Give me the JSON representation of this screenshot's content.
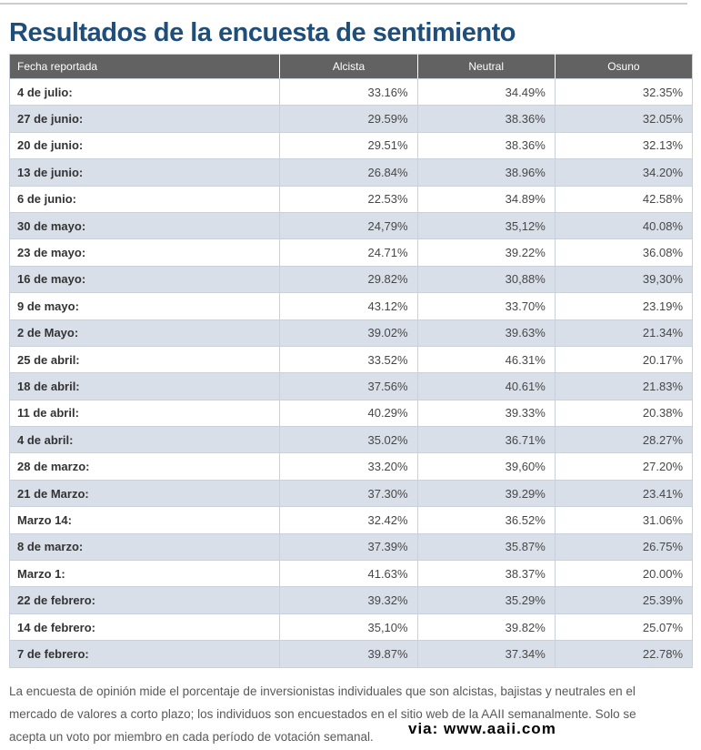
{
  "page": {
    "title": "Resultados de la encuesta de sentimiento",
    "colors": {
      "title_text": "#1F4E79",
      "header_bg": "#626262",
      "header_text": "#FFFFFF",
      "row_alt_bg": "#D9DFE9",
      "table_border": "#C9D1DD",
      "body_text": "#595959",
      "attribution_text": "#000000"
    }
  },
  "table": {
    "columns": [
      "Fecha reportada",
      "Alcista",
      "Neutral",
      "Osuno"
    ],
    "rows": [
      {
        "date": "4 de julio:",
        "alcista": "33.16%",
        "neutral": "34.49%",
        "osuno": "32.35%"
      },
      {
        "date": "27 de junio:",
        "alcista": "29.59%",
        "neutral": "38.36%",
        "osuno": "32.05%"
      },
      {
        "date": "20 de junio:",
        "alcista": "29.51%",
        "neutral": "38.36%",
        "osuno": "32.13%"
      },
      {
        "date": "13 de junio:",
        "alcista": "26.84%",
        "neutral": "38.96%",
        "osuno": "34.20%"
      },
      {
        "date": "6 de junio:",
        "alcista": "22.53%",
        "neutral": "34.89%",
        "osuno": "42.58%"
      },
      {
        "date": "30 de mayo:",
        "alcista": "24,79%",
        "neutral": "35,12%",
        "osuno": "40.08%"
      },
      {
        "date": "23 de mayo:",
        "alcista": "24.71%",
        "neutral": "39.22%",
        "osuno": "36.08%"
      },
      {
        "date": "16 de mayo:",
        "alcista": "29.82%",
        "neutral": "30,88%",
        "osuno": "39,30%"
      },
      {
        "date": "9 de mayo:",
        "alcista": "43.12%",
        "neutral": "33.70%",
        "osuno": "23.19%"
      },
      {
        "date": "2 de Mayo:",
        "alcista": "39.02%",
        "neutral": "39.63%",
        "osuno": "21.34%"
      },
      {
        "date": "25 de abril:",
        "alcista": "33.52%",
        "neutral": "46.31%",
        "osuno": "20.17%"
      },
      {
        "date": "18 de abril:",
        "alcista": "37.56%",
        "neutral": "40.61%",
        "osuno": "21.83%"
      },
      {
        "date": "11 de abril:",
        "alcista": "40.29%",
        "neutral": "39.33%",
        "osuno": "20.38%"
      },
      {
        "date": "4 de abril:",
        "alcista": "35.02%",
        "neutral": "36.71%",
        "osuno": "28.27%"
      },
      {
        "date": "28 de marzo:",
        "alcista": "33.20%",
        "neutral": "39,60%",
        "osuno": "27.20%"
      },
      {
        "date": "21 de Marzo:",
        "alcista": "37.30%",
        "neutral": "39.29%",
        "osuno": "23.41%"
      },
      {
        "date": "Marzo 14:",
        "alcista": "32.42%",
        "neutral": "36.52%",
        "osuno": "31.06%"
      },
      {
        "date": "8 de marzo:",
        "alcista": "37.39%",
        "neutral": "35.87%",
        "osuno": "26.75%"
      },
      {
        "date": "Marzo 1:",
        "alcista": "41.63%",
        "neutral": "38.37%",
        "osuno": "20.00%"
      },
      {
        "date": "22 de febrero:",
        "alcista": "39.32%",
        "neutral": "35.29%",
        "osuno": "25.39%"
      },
      {
        "date": "14 de febrero:",
        "alcista": "35,10%",
        "neutral": "39.82%",
        "osuno": "25.07%"
      },
      {
        "date": "7 de febrero:",
        "alcista": "39.87%",
        "neutral": "37.34%",
        "osuno": "22.78%"
      }
    ]
  },
  "footer": {
    "lines": [
      "La encuesta de opinión mide el porcentaje de inversionistas individuales que son alcistas, bajistas y neutrales en el",
      "mercado de valores a corto plazo; los individuos son encuestados en el sitio web de la AAII semanalmente. Solo se",
      "acepta un voto por miembro en cada período de votación semanal."
    ],
    "attribution": "via: www.aaii.com"
  }
}
